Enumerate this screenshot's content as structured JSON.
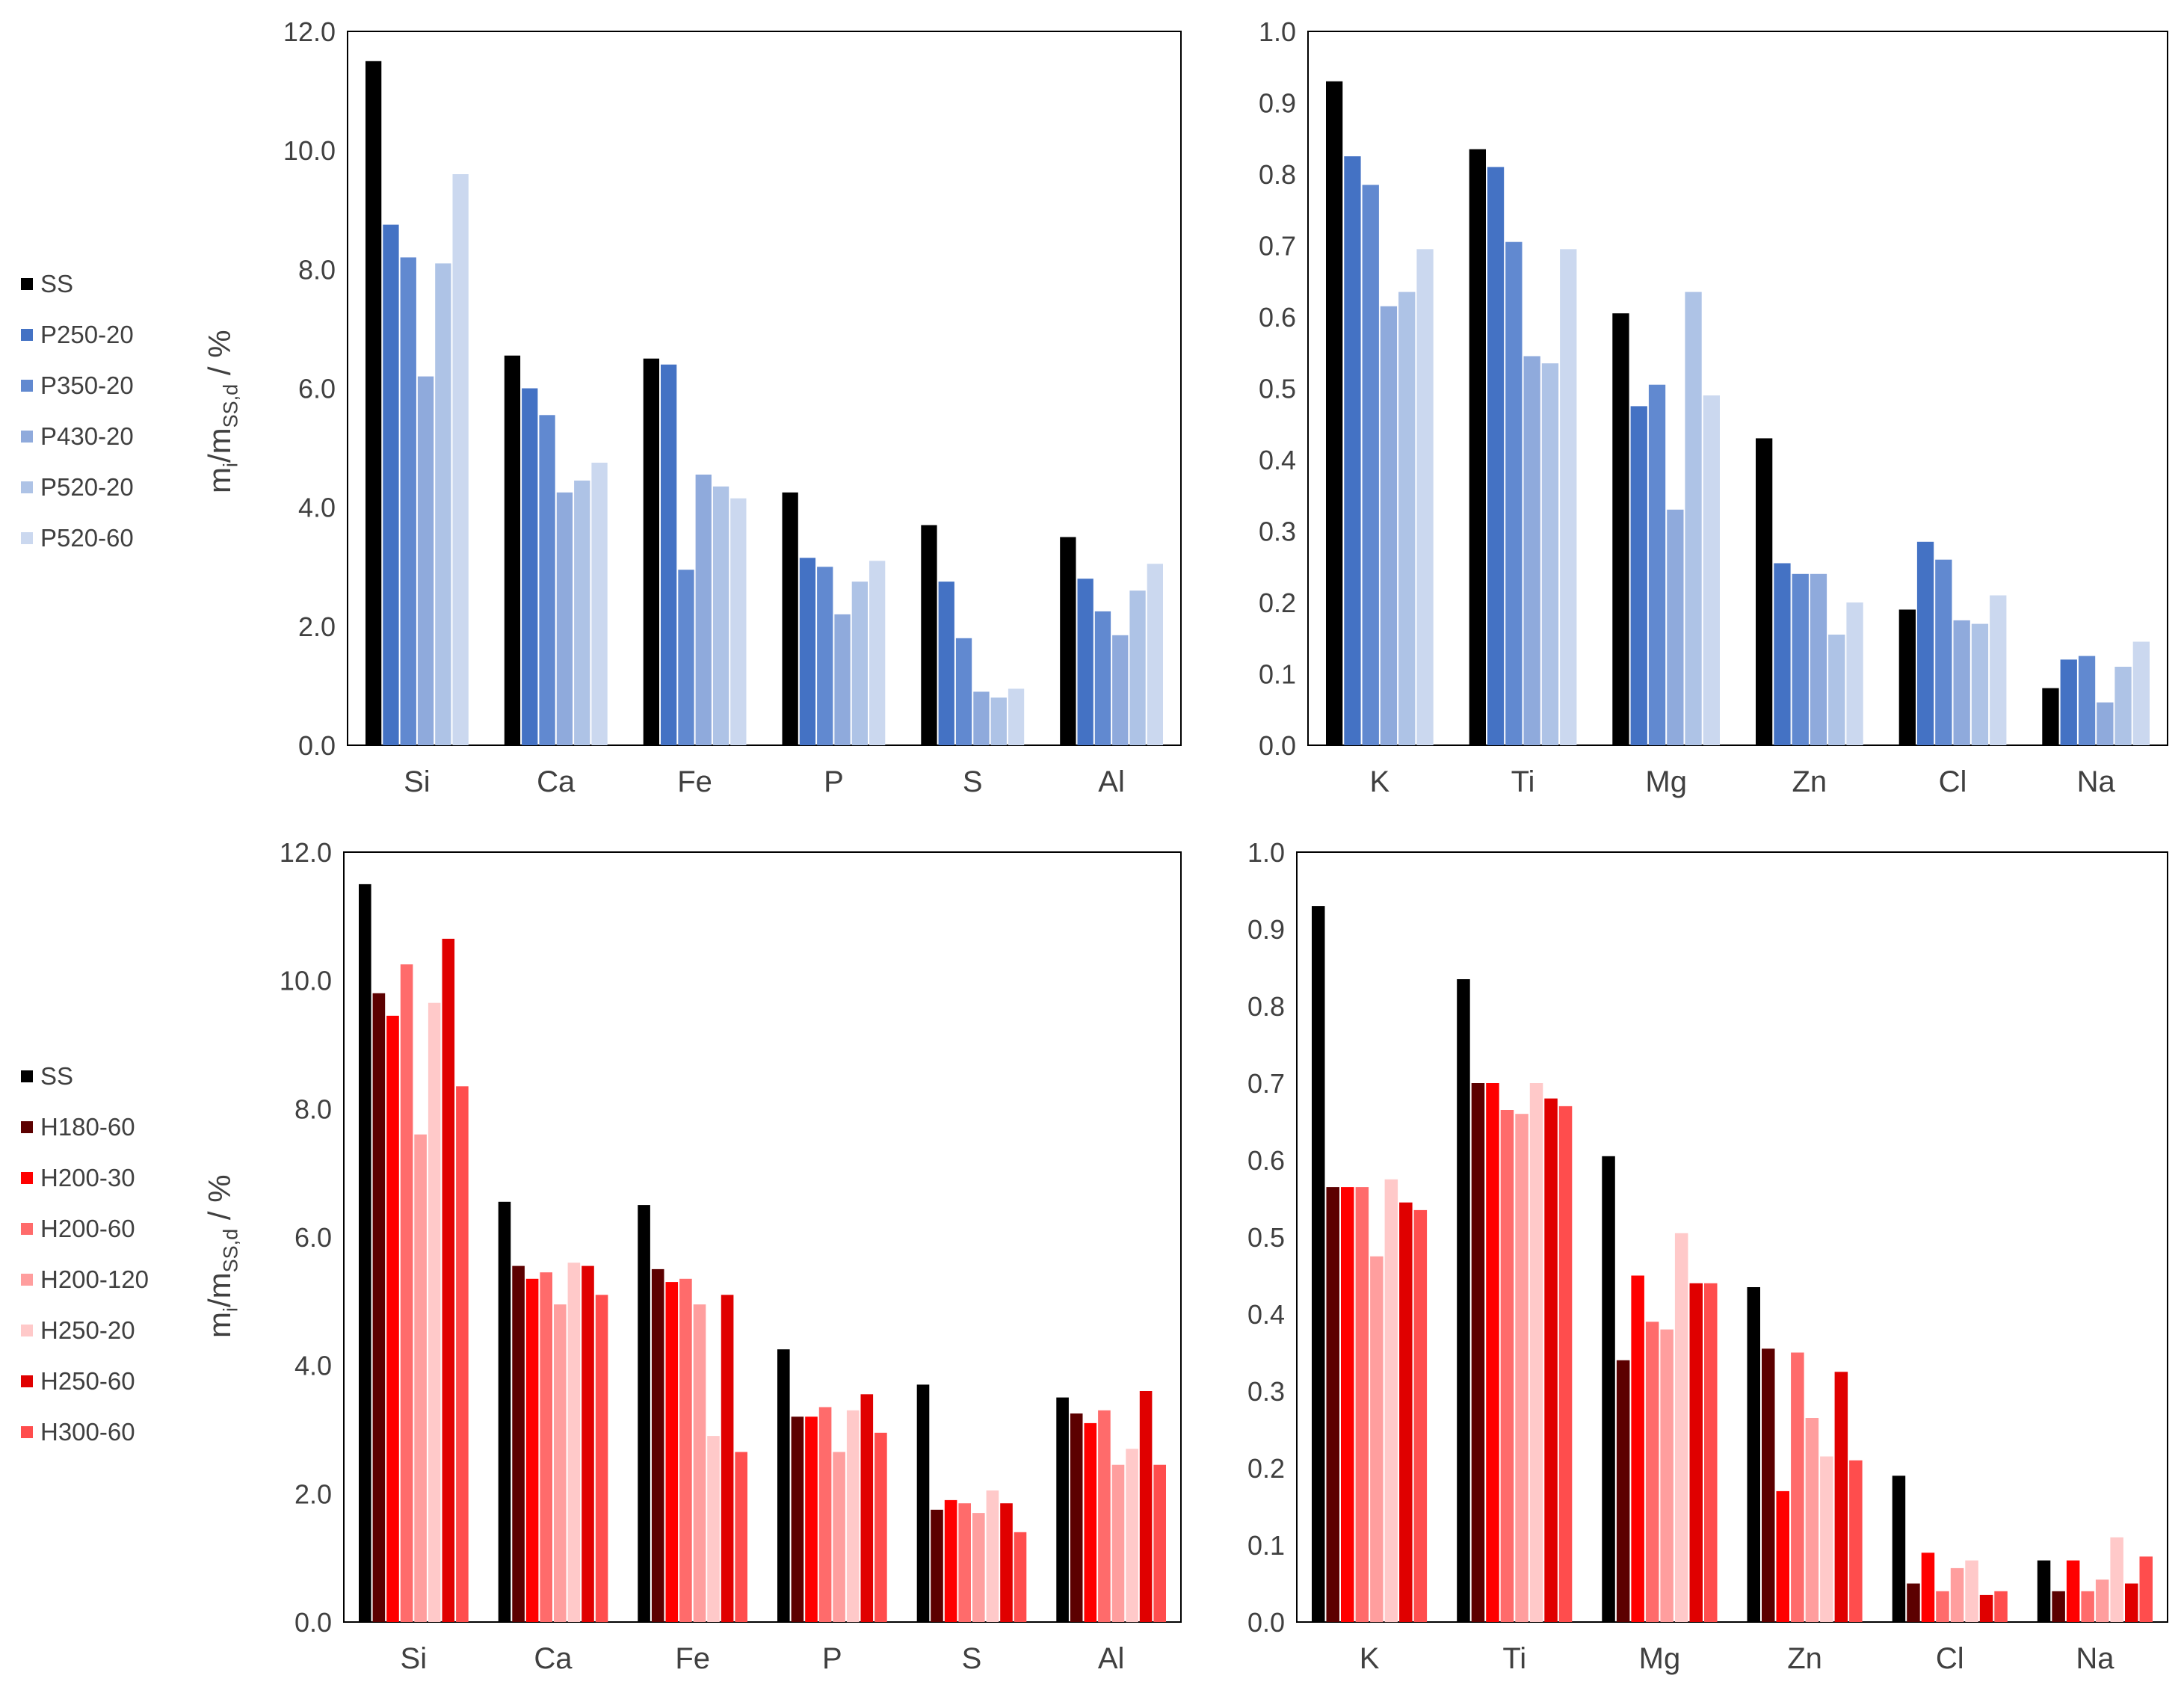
{
  "axis_label": {
    "main": "m",
    "sub_i": "i",
    "mid": "/m",
    "sub_ss": "SS,d",
    "unit": " / %"
  },
  "legend_top": [
    {
      "name": "SS",
      "color": "#000000"
    },
    {
      "name": "P250-20",
      "color": "#4472c4"
    },
    {
      "name": "P350-20",
      "color": "#6189d0"
    },
    {
      "name": "P430-20",
      "color": "#8faadc"
    },
    {
      "name": "P520-20",
      "color": "#aec3e6"
    },
    {
      "name": "P520-60",
      "color": "#cbd8ef"
    }
  ],
  "legend_bottom": [
    {
      "name": "SS",
      "color": "#000000"
    },
    {
      "name": "H180-60",
      "color": "#5c0000"
    },
    {
      "name": "H200-30",
      "color": "#ff0000"
    },
    {
      "name": "H200-60",
      "color": "#ff6b6b"
    },
    {
      "name": "H200-120",
      "color": "#ff9e9e"
    },
    {
      "name": "H250-20",
      "color": "#ffc9c9"
    },
    {
      "name": "H250-60",
      "color": "#e00000"
    },
    {
      "name": "H300-60",
      "color": "#ff4d4d"
    }
  ],
  "chart_data": [
    {
      "type": "bar",
      "ylabel": "mi/mSS,d / %",
      "ylim": [
        0,
        12
      ],
      "yticks": [
        "0.0",
        "2.0",
        "4.0",
        "6.0",
        "8.0",
        "10.0",
        "12.0"
      ],
      "categories": [
        "Si",
        "Ca",
        "Fe",
        "P",
        "S",
        "Al"
      ],
      "series": [
        {
          "name": "SS",
          "color": "#000000",
          "values": [
            11.5,
            6.55,
            6.5,
            4.25,
            3.7,
            3.5
          ]
        },
        {
          "name": "P250-20",
          "color": "#4472c4",
          "values": [
            8.75,
            6.0,
            6.4,
            3.15,
            2.75,
            2.8
          ]
        },
        {
          "name": "P350-20",
          "color": "#6189d0",
          "values": [
            8.2,
            5.55,
            2.95,
            3.0,
            1.8,
            2.25
          ]
        },
        {
          "name": "P430-20",
          "color": "#8faadc",
          "values": [
            6.2,
            4.25,
            4.55,
            2.2,
            0.9,
            1.85
          ]
        },
        {
          "name": "P520-20",
          "color": "#aec3e6",
          "values": [
            8.1,
            4.45,
            4.35,
            2.75,
            0.8,
            2.6
          ]
        },
        {
          "name": "P520-60",
          "color": "#cbd8ef",
          "values": [
            9.6,
            4.75,
            4.15,
            3.1,
            0.95,
            3.05
          ]
        }
      ]
    },
    {
      "type": "bar",
      "ylabel": "",
      "ylim": [
        0,
        1
      ],
      "yticks": [
        "0.0",
        "0.1",
        "0.2",
        "0.3",
        "0.4",
        "0.5",
        "0.6",
        "0.7",
        "0.8",
        "0.9",
        "1.0"
      ],
      "categories": [
        "K",
        "Ti",
        "Mg",
        "Zn",
        "Cl",
        "Na"
      ],
      "series": [
        {
          "name": "SS",
          "color": "#000000",
          "values": [
            0.93,
            0.835,
            0.605,
            0.43,
            0.19,
            0.08
          ]
        },
        {
          "name": "P250-20",
          "color": "#4472c4",
          "values": [
            0.825,
            0.81,
            0.475,
            0.255,
            0.285,
            0.12
          ]
        },
        {
          "name": "P350-20",
          "color": "#6189d0",
          "values": [
            0.785,
            0.705,
            0.505,
            0.24,
            0.26,
            0.125
          ]
        },
        {
          "name": "P430-20",
          "color": "#8faadc",
          "values": [
            0.615,
            0.545,
            0.33,
            0.24,
            0.175,
            0.06
          ]
        },
        {
          "name": "P520-20",
          "color": "#aec3e6",
          "values": [
            0.635,
            0.535,
            0.635,
            0.155,
            0.17,
            0.11
          ]
        },
        {
          "name": "P520-60",
          "color": "#cbd8ef",
          "values": [
            0.695,
            0.695,
            0.49,
            0.2,
            0.21,
            0.145
          ]
        }
      ]
    },
    {
      "type": "bar",
      "ylabel": "mi/mSS,d / %",
      "ylim": [
        0,
        12
      ],
      "yticks": [
        "0.0",
        "2.0",
        "4.0",
        "6.0",
        "8.0",
        "10.0",
        "12.0"
      ],
      "categories": [
        "Si",
        "Ca",
        "Fe",
        "P",
        "S",
        "Al"
      ],
      "series": [
        {
          "name": "SS",
          "color": "#000000",
          "values": [
            11.5,
            6.55,
            6.5,
            4.25,
            3.7,
            3.5
          ]
        },
        {
          "name": "H180-60",
          "color": "#5c0000",
          "values": [
            9.8,
            5.55,
            5.5,
            3.2,
            1.75,
            3.25
          ]
        },
        {
          "name": "H200-30",
          "color": "#ff0000",
          "values": [
            9.45,
            5.35,
            5.3,
            3.2,
            1.9,
            3.1
          ]
        },
        {
          "name": "H200-60",
          "color": "#ff6b6b",
          "values": [
            10.25,
            5.45,
            5.35,
            3.35,
            1.85,
            3.3
          ]
        },
        {
          "name": "H200-120",
          "color": "#ff9e9e",
          "values": [
            7.6,
            4.95,
            4.95,
            2.65,
            1.7,
            2.45
          ]
        },
        {
          "name": "H250-20",
          "color": "#ffc9c9",
          "values": [
            9.65,
            5.6,
            2.9,
            3.3,
            2.05,
            2.7
          ]
        },
        {
          "name": "H250-60",
          "color": "#e00000",
          "values": [
            10.65,
            5.55,
            5.1,
            3.55,
            1.85,
            3.6
          ]
        },
        {
          "name": "H300-60",
          "color": "#ff4d4d",
          "values": [
            8.35,
            5.1,
            2.65,
            2.95,
            1.4,
            2.45
          ]
        }
      ]
    },
    {
      "type": "bar",
      "ylabel": "",
      "ylim": [
        0,
        1
      ],
      "yticks": [
        "0.0",
        "0.1",
        "0.2",
        "0.3",
        "0.4",
        "0.5",
        "0.6",
        "0.7",
        "0.8",
        "0.9",
        "1.0"
      ],
      "categories": [
        "K",
        "Ti",
        "Mg",
        "Zn",
        "Cl",
        "Na"
      ],
      "series": [
        {
          "name": "SS",
          "color": "#000000",
          "values": [
            0.93,
            0.835,
            0.605,
            0.435,
            0.19,
            0.08
          ]
        },
        {
          "name": "H180-60",
          "color": "#5c0000",
          "values": [
            0.565,
            0.7,
            0.34,
            0.355,
            0.05,
            0.04
          ]
        },
        {
          "name": "H200-30",
          "color": "#ff0000",
          "values": [
            0.565,
            0.7,
            0.45,
            0.17,
            0.09,
            0.08
          ]
        },
        {
          "name": "H200-60",
          "color": "#ff6b6b",
          "values": [
            0.565,
            0.665,
            0.39,
            0.35,
            0.04,
            0.04
          ]
        },
        {
          "name": "H200-120",
          "color": "#ff9e9e",
          "values": [
            0.475,
            0.66,
            0.38,
            0.265,
            0.07,
            0.055
          ]
        },
        {
          "name": "H250-20",
          "color": "#ffc9c9",
          "values": [
            0.575,
            0.7,
            0.505,
            0.215,
            0.08,
            0.11
          ]
        },
        {
          "name": "H250-60",
          "color": "#e00000",
          "values": [
            0.545,
            0.68,
            0.44,
            0.325,
            0.035,
            0.05
          ]
        },
        {
          "name": "H300-60",
          "color": "#ff4d4d",
          "values": [
            0.535,
            0.67,
            0.44,
            0.21,
            0.04,
            0.085
          ]
        }
      ]
    }
  ]
}
